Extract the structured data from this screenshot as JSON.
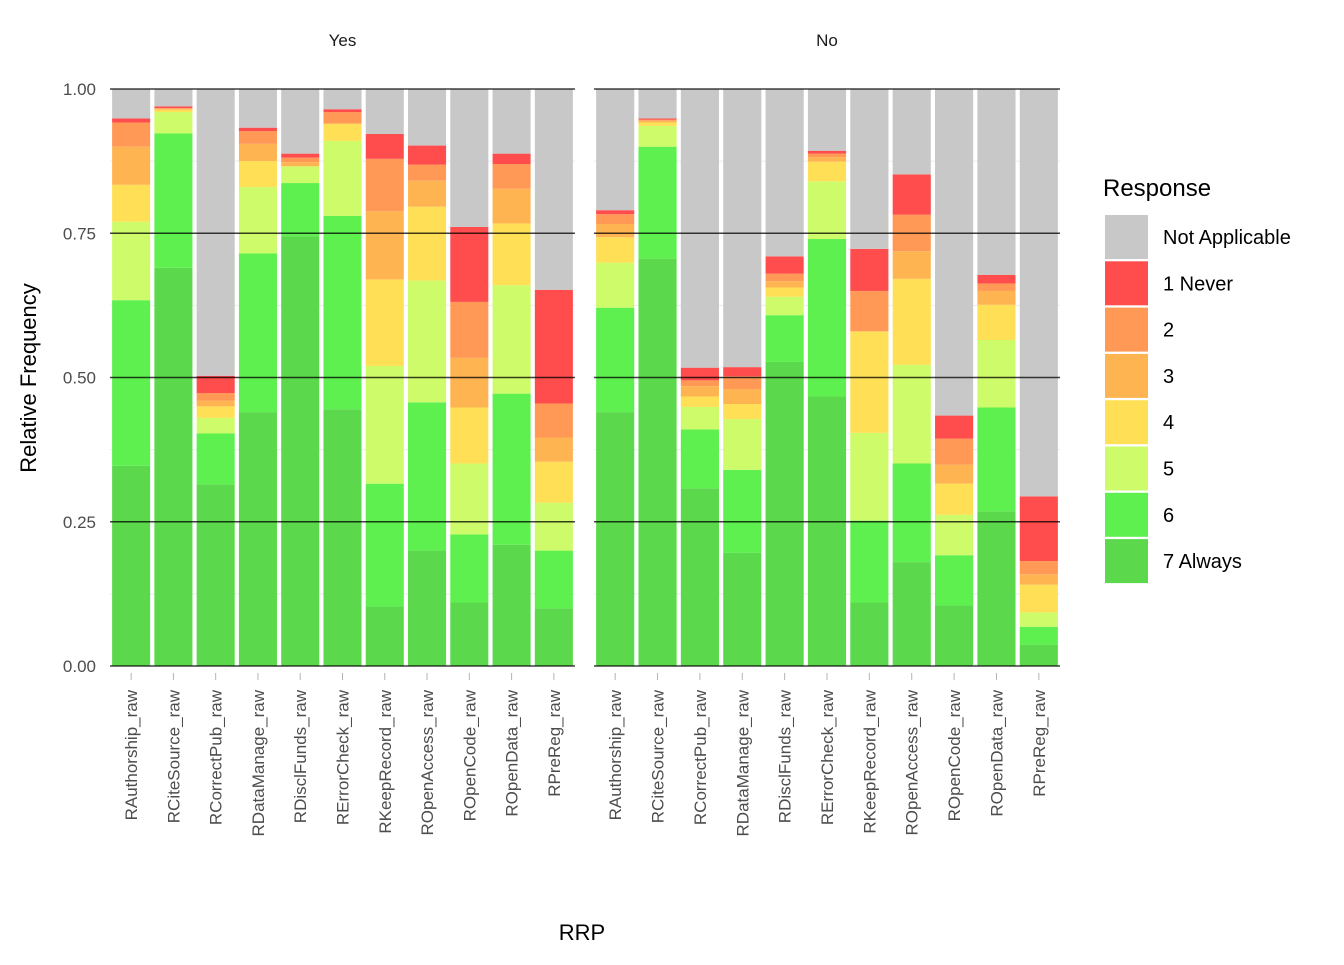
{
  "chart_data": {
    "type": "bar",
    "stacked": true,
    "xlabel": "RRP",
    "ylabel": "Relative Frequency",
    "ylim": [
      0,
      1
    ],
    "yticks": [
      "0.00",
      "0.25",
      "0.50",
      "0.75",
      "1.00"
    ],
    "legend": {
      "title": "Response",
      "position": "right",
      "entries": [
        "Not Applicable",
        "1 Never",
        "2",
        "3",
        "4",
        "5",
        "6",
        "7 Always"
      ]
    },
    "colors": {
      "Not Applicable": "#c8c8c8",
      "1 Never": "#ff4d4d",
      "2": "#ff9955",
      "3": "#ffb452",
      "4": "#ffdf55",
      "5": "#cdfb6a",
      "6": "#5df04f",
      "7 Always": "#5bd84b"
    },
    "categories": [
      "RAuthorship_raw",
      "RCiteSource_raw",
      "RCorrectPub_raw",
      "RDataManage_raw",
      "RDisclFunds_raw",
      "RErrorCheck_raw",
      "RKeepRecord_raw",
      "ROpenAccess_raw",
      "ROpenCode_raw",
      "ROpenData_raw",
      "RPreReg_raw"
    ],
    "series_order_bottom_to_top": [
      "7 Always",
      "6",
      "5",
      "4",
      "3",
      "2",
      "1 Never",
      "Not Applicable"
    ],
    "panels": [
      {
        "title": "Yes",
        "series": [
          {
            "name": "7 Always",
            "values": [
              0.347,
              0.69,
              0.315,
              0.44,
              0.745,
              0.445,
              0.103,
              0.2,
              0.11,
              0.21,
              0.1
            ]
          },
          {
            "name": "6",
            "values": [
              0.287,
              0.233,
              0.088,
              0.275,
              0.092,
              0.335,
              0.213,
              0.257,
              0.118,
              0.262,
              0.1
            ]
          },
          {
            "name": "5",
            "values": [
              0.136,
              0.037,
              0.027,
              0.115,
              0.029,
              0.13,
              0.204,
              0.211,
              0.123,
              0.188,
              0.083
            ]
          },
          {
            "name": "4",
            "values": [
              0.064,
              0.004,
              0.02,
              0.045,
              0.0,
              0.03,
              0.15,
              0.128,
              0.097,
              0.107,
              0.071
            ]
          },
          {
            "name": "3",
            "values": [
              0.066,
              0.002,
              0.01,
              0.03,
              0.007,
              0.0,
              0.118,
              0.045,
              0.086,
              0.06,
              0.042
            ]
          },
          {
            "name": "2",
            "values": [
              0.042,
              0.001,
              0.013,
              0.022,
              0.008,
              0.02,
              0.091,
              0.028,
              0.097,
              0.043,
              0.059
            ]
          },
          {
            "name": "1 Never",
            "values": [
              0.007,
              0.003,
              0.03,
              0.006,
              0.007,
              0.005,
              0.043,
              0.033,
              0.13,
              0.018,
              0.197
            ]
          },
          {
            "name": "Not Applicable",
            "values": [
              0.051,
              0.03,
              0.497,
              0.067,
              0.112,
              0.035,
              0.078,
              0.098,
              0.239,
              0.112,
              0.348
            ]
          }
        ]
      },
      {
        "title": "No",
        "series": [
          {
            "name": "7 Always",
            "values": [
              0.44,
              0.706,
              0.308,
              0.196,
              0.527,
              0.467,
              0.11,
              0.18,
              0.105,
              0.268,
              0.037
            ]
          },
          {
            "name": "6",
            "values": [
              0.181,
              0.194,
              0.102,
              0.144,
              0.081,
              0.273,
              0.142,
              0.171,
              0.087,
              0.18,
              0.031
            ]
          },
          {
            "name": "5",
            "values": [
              0.078,
              0.036,
              0.039,
              0.088,
              0.032,
              0.1,
              0.152,
              0.171,
              0.07,
              0.117,
              0.025
            ]
          },
          {
            "name": "4",
            "values": [
              0.044,
              0.006,
              0.018,
              0.026,
              0.016,
              0.034,
              0.176,
              0.149,
              0.054,
              0.061,
              0.048
            ]
          },
          {
            "name": "3",
            "values": [
              0.023,
              0.003,
              0.018,
              0.026,
              0.011,
              0.008,
              0.0,
              0.048,
              0.033,
              0.024,
              0.018
            ]
          },
          {
            "name": "2",
            "values": [
              0.017,
              0.002,
              0.01,
              0.022,
              0.013,
              0.006,
              0.07,
              0.063,
              0.045,
              0.013,
              0.023
            ]
          },
          {
            "name": "1 Never",
            "values": [
              0.007,
              0.002,
              0.022,
              0.016,
              0.03,
              0.005,
              0.073,
              0.07,
              0.04,
              0.015,
              0.112
            ]
          },
          {
            "name": "Not Applicable",
            "values": [
              0.21,
              0.051,
              0.483,
              0.482,
              0.29,
              0.107,
              0.277,
              0.148,
              0.566,
              0.322,
              0.706
            ]
          }
        ]
      }
    ]
  }
}
